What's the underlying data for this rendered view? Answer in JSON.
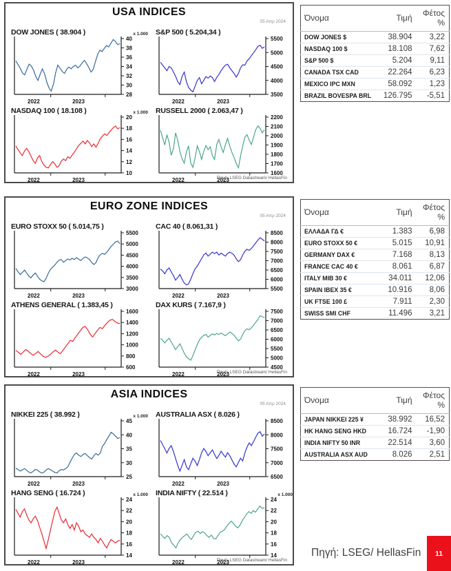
{
  "footer": {
    "source": "Πηγή: LSEG/ HellasFin",
    "page_number": "11"
  },
  "table_headers": [
    "Όνομα",
    "Τιμή",
    "Φέτος %"
  ],
  "panels": [
    {
      "title": "USA INDICES",
      "date": "05 Απρ 2024",
      "source": "Πηγή: LSEG Datastream/ HellasFin",
      "chart_ids": [
        0,
        1,
        2,
        3
      ],
      "table": {
        "rows": [
          [
            "DOW JONES $",
            "38.904",
            "3,22"
          ],
          [
            "NASDAQ 100 $",
            "18.108",
            "7,62"
          ],
          [
            "S&P 500 $",
            "5.204",
            "9,11"
          ],
          [
            "CANADA TSX CAD",
            "22.264",
            "6,23"
          ],
          [
            "MEXICO IPC MXN",
            "58.092",
            "1,23"
          ],
          [
            "BRAZIL BOVESPA BRL",
            "126.795",
            "-5,51"
          ]
        ]
      }
    },
    {
      "title": "EURO ZONE INDICES",
      "date": "05 Απρ 2024",
      "source": "Πηγή: LSEG Datastream/ HellasFin",
      "chart_ids": [
        4,
        5,
        6,
        7
      ],
      "table": {
        "rows": [
          [
            "ΕΛΛΑΔΑ ΓΔ €",
            "1.383",
            "6,98"
          ],
          [
            "EURO STOXX 50 €",
            "5.015",
            "10,91"
          ],
          [
            "GERMANY DAX €",
            "7.168",
            "8,13"
          ],
          [
            "FRANCE CAC 40 €",
            "8.061",
            "6,87"
          ],
          [
            "ITALY MIB 30 €",
            "34.011",
            "12,06"
          ],
          [
            "SPAIN IBEX 35 €",
            "10.916",
            "8,06"
          ],
          [
            "UK FTSE 100 £",
            "7.911",
            "2,30"
          ],
          [
            "SWISS SMI CHF",
            "11.496",
            "3,21"
          ]
        ]
      }
    },
    {
      "title": "ASIA INDICES",
      "date": "05 Απρ 2024",
      "source": "Πηγή: LSEG Datastream/ HellasFin",
      "chart_ids": [
        8,
        9,
        10,
        11
      ],
      "table": {
        "rows": [
          [
            "JAPAN NIKKEI 225 ¥",
            "38.992",
            "16,52"
          ],
          [
            "HK HANG SENG HKD",
            "16.724",
            "-1,90"
          ],
          [
            "INDIA NIFTY 50 INR",
            "22.514",
            "3,60"
          ],
          [
            "AUSTRALIA ASX AUD",
            "8.026",
            "2,51"
          ]
        ]
      }
    }
  ],
  "chart_data": [
    {
      "type": "line",
      "name": "DOW JONES",
      "last_value": "38.904",
      "title_display": "DOW JONES ( 38.904 )",
      "scale_label": "x 1.000",
      "color": "#366A9A",
      "ylim": [
        28,
        40
      ],
      "y_ticks": [
        "28",
        "30",
        "32",
        "34",
        "36",
        "38",
        "40"
      ],
      "x_tick_labels": [
        "2022",
        "2023"
      ],
      "points": [
        35.2,
        34.4,
        33.6,
        32.6,
        32.2,
        33.4,
        34.5,
        34.1,
        33.2,
        31.9,
        31.0,
        32.3,
        33.5,
        32.4,
        30.6,
        29.4,
        28.7,
        30.2,
        32.6,
        34.3,
        33.6,
        32.9,
        32.5,
        33.4,
        33.9,
        33.5,
        34.0,
        34.3,
        33.7,
        34.1,
        34.8,
        35.3,
        34.6,
        33.8,
        32.8,
        33.4,
        35.1,
        36.6,
        37.5,
        37.2,
        37.9,
        38.5,
        38.2,
        39.0,
        39.8,
        39.4,
        38.7,
        38.9
      ]
    },
    {
      "type": "line",
      "name": "S&P 500",
      "last_value": "5.204,34",
      "title_display": "S&P 500  ( 5.204,34 )",
      "scale_label": "",
      "color": "#3333CC",
      "ylim": [
        3500,
        5500
      ],
      "y_ticks": [
        "3500",
        "4000",
        "4500",
        "5000",
        "5500"
      ],
      "x_tick_labels": [
        "2022",
        "2023"
      ],
      "points": [
        4650,
        4550,
        4450,
        4350,
        4500,
        4450,
        4300,
        4150,
        3950,
        3850,
        4150,
        4300,
        3950,
        3750,
        3650,
        3590,
        3790,
        4000,
        4100,
        3880,
        4000,
        4140,
        4080,
        4160,
        4100,
        3960,
        4110,
        4210,
        4350,
        4460,
        4550,
        4580,
        4450,
        4350,
        4250,
        4120,
        4250,
        4450,
        4560,
        4550,
        4700,
        4780,
        4890,
        4990,
        5100,
        5220,
        5260,
        5150,
        5204
      ]
    },
    {
      "type": "line",
      "name": "NASDAQ 100",
      "last_value": "18.108",
      "title_display": "NASDAQ 100 ( 18.108 )",
      "scale_label": "x 1.000",
      "color": "#E8282F",
      "ylim": [
        10,
        20
      ],
      "y_ticks": [
        "10",
        "12",
        "14",
        "16",
        "18",
        "20"
      ],
      "x_tick_labels": [
        "2022",
        "2023"
      ],
      "points": [
        14.8,
        14.2,
        13.6,
        13.1,
        13.9,
        14.4,
        13.8,
        13.0,
        12.2,
        11.7,
        12.7,
        13.1,
        12.0,
        11.4,
        11.0,
        10.9,
        11.5,
        12.0,
        11.6,
        11.0,
        11.3,
        12.1,
        12.5,
        12.2,
        12.9,
        12.6,
        13.2,
        13.7,
        14.3,
        14.9,
        15.3,
        15.7,
        15.2,
        15.8,
        15.4,
        14.7,
        15.2,
        14.6,
        15.3,
        16.1,
        16.6,
        17.0,
        16.7,
        17.2,
        17.7,
        18.1,
        18.4,
        17.9,
        18.1
      ]
    },
    {
      "type": "line",
      "name": "RUSSELL 2000",
      "last_value": "2.063,47",
      "title_display": "RUSSELL 2000  ( 2.063,47 )",
      "scale_label": "",
      "color": "#4BA585",
      "ylim": [
        1600,
        2200
      ],
      "y_ticks": [
        "1600",
        "1700",
        "1800",
        "1900",
        "2000",
        "2100",
        "2200"
      ],
      "x_tick_labels": [
        "2022",
        "2023"
      ],
      "points": [
        2060,
        1980,
        1900,
        2010,
        1930,
        1790,
        1860,
        2030,
        1950,
        1830,
        1750,
        1705,
        1830,
        1890,
        1705,
        1660,
        1760,
        1890,
        1830,
        1745,
        1830,
        1895,
        1850,
        1880,
        1785,
        1745,
        1905,
        1960,
        1880,
        1820,
        1905,
        1970,
        1890,
        1820,
        1765,
        1700,
        1655,
        1785,
        1890,
        1985,
        2010,
        1950,
        1905,
        1985,
        2065,
        2105,
        2080,
        2030,
        2063
      ]
    },
    {
      "type": "line",
      "name": "EURO STOXX 50",
      "last_value": "5.014,75",
      "title_display": "EURO STOXX 50 ( 5.014,75 )",
      "scale_label": "",
      "color": "#366A9A",
      "ylim": [
        3000,
        5500
      ],
      "y_ticks": [
        "3000",
        "3500",
        "4000",
        "4500",
        "5000",
        "5500"
      ],
      "x_tick_labels": [
        "2022",
        "2023"
      ],
      "points": [
        3900,
        3760,
        3630,
        3720,
        3830,
        3700,
        3560,
        3480,
        3610,
        3700,
        3550,
        3420,
        3350,
        3310,
        3460,
        3690,
        3860,
        3960,
        4060,
        4180,
        4280,
        4300,
        4180,
        4260,
        4330,
        4280,
        4360,
        4300,
        4390,
        4320,
        4260,
        4350,
        4420,
        4380,
        4300,
        4180,
        4080,
        4160,
        4390,
        4520,
        4580,
        4530,
        4630,
        4760,
        4890,
        4990,
        5090,
        5130,
        5015
      ]
    },
    {
      "type": "line",
      "name": "CAC 40",
      "last_value": "8.061,31",
      "title_display": "CAC 40  ( 8.061,31 )",
      "scale_label": "",
      "color": "#3333CC",
      "ylim": [
        5500,
        8500
      ],
      "y_ticks": [
        "5500",
        "6000",
        "6500",
        "7000",
        "7500",
        "8000",
        "8500"
      ],
      "x_tick_labels": [
        "2022",
        "2023"
      ],
      "points": [
        6560,
        6450,
        6300,
        6500,
        6610,
        6400,
        6200,
        5950,
        6100,
        6260,
        6000,
        5800,
        5700,
        5760,
        6010,
        6300,
        6560,
        6710,
        6910,
        7110,
        7310,
        7410,
        7250,
        7360,
        7460,
        7380,
        7460,
        7300,
        7410,
        7320,
        7250,
        7390,
        7460,
        7400,
        7300,
        7100,
        6950,
        7060,
        7310,
        7510,
        7610,
        7560,
        7660,
        7810,
        7960,
        8110,
        8230,
        8150,
        8061
      ]
    },
    {
      "type": "line",
      "name": "ATHENS GENERAL",
      "last_value": "1.383,45",
      "title_display": "ATHENS GENERAL ( 1.383,45 )",
      "scale_label": "",
      "color": "#E8282F",
      "ylim": [
        600,
        1600
      ],
      "y_ticks": [
        "600",
        "800",
        "1000",
        "1200",
        "1400",
        "1600"
      ],
      "x_tick_labels": [
        "2022",
        "2023"
      ],
      "points": [
        900,
        865,
        830,
        870,
        915,
        885,
        845,
        815,
        845,
        880,
        835,
        795,
        775,
        795,
        830,
        870,
        905,
        870,
        840,
        900,
        960,
        1020,
        1080,
        1060,
        1130,
        1190,
        1250,
        1310,
        1330,
        1270,
        1190,
        1140,
        1200,
        1260,
        1310,
        1290,
        1350,
        1400,
        1440,
        1455,
        1420,
        1390,
        1383
      ]
    },
    {
      "type": "line",
      "name": "DAX KURS",
      "last_value": "7.167,9",
      "title_display": "DAX KURS  ( 7.167,9 )",
      "scale_label": "",
      "color": "#4BA585",
      "ylim": [
        4500,
        7500
      ],
      "y_ticks": [
        "4500",
        "5000",
        "5500",
        "6000",
        "6500",
        "7000",
        "7500"
      ],
      "x_tick_labels": [
        "2022",
        "2023"
      ],
      "points": [
        6050,
        5950,
        5800,
        5950,
        6050,
        5850,
        5650,
        5450,
        5600,
        5750,
        5500,
        5250,
        5050,
        4950,
        4870,
        5120,
        5420,
        5720,
        5960,
        6110,
        6210,
        6260,
        6110,
        6210,
        6290,
        6230,
        6310,
        6260,
        6330,
        6260,
        6190,
        6290,
        6390,
        6310,
        6210,
        6060,
        5910,
        6010,
        6260,
        6460,
        6560,
        6510,
        6610,
        6760,
        6910,
        7060,
        7260,
        7210,
        7168
      ]
    },
    {
      "type": "line",
      "name": "NIKKEI 225",
      "last_value": "38.992",
      "title_display": "NIKKEI 225 ( 38.992 )",
      "scale_label": "x 1.000",
      "color": "#366A9A",
      "ylim": [
        25,
        45
      ],
      "y_ticks": [
        "25",
        "30",
        "35",
        "40",
        "45"
      ],
      "x_tick_labels": [
        "2022",
        "2023"
      ],
      "points": [
        28.0,
        27.6,
        27.0,
        27.4,
        27.9,
        27.3,
        26.6,
        26.3,
        26.9,
        27.6,
        27.3,
        26.7,
        26.3,
        26.6,
        27.4,
        27.9,
        27.5,
        27.0,
        26.5,
        26.3,
        27.1,
        27.6,
        27.4,
        27.9,
        28.5,
        30.1,
        31.6,
        32.9,
        33.5,
        32.7,
        32.2,
        32.9,
        33.3,
        32.5,
        31.9,
        31.3,
        32.5,
        33.3,
        32.7,
        33.5,
        35.9,
        36.9,
        38.3,
        39.6,
        40.9,
        40.3,
        39.5,
        38.7,
        39.0
      ]
    },
    {
      "type": "line",
      "name": "AUSTRALIA ASX",
      "last_value": "8.026",
      "title_display": "AUSTRALIA ASX  ( 8.026 )",
      "scale_label": "",
      "color": "#3333CC",
      "ylim": [
        6500,
        8500
      ],
      "y_ticks": [
        "6500",
        "7000",
        "7500",
        "8000",
        "8500"
      ],
      "x_tick_labels": [
        "2022",
        "2023"
      ],
      "points": [
        7800,
        7650,
        7500,
        7350,
        7510,
        7610,
        7400,
        7150,
        6900,
        6700,
        6910,
        7110,
        6850,
        6750,
        6960,
        7160,
        7060,
        6900,
        7110,
        7360,
        7510,
        7400,
        7250,
        7360,
        7460,
        7300,
        7150,
        7260,
        7410,
        7300,
        7200,
        7360,
        7250,
        7100,
        6950,
        6850,
        7010,
        7160,
        7060,
        7360,
        7560,
        7710,
        7610,
        7760,
        7910,
        8060,
        8110,
        7950,
        8026
      ]
    },
    {
      "type": "line",
      "name": "HANG SENG",
      "last_value": "16.724",
      "title_display": "HANG SENG ( 16.724 )",
      "scale_label": "x 1.000",
      "color": "#E8282F",
      "ylim": [
        14,
        24
      ],
      "y_ticks": [
        "14",
        "16",
        "18",
        "20",
        "22",
        "24"
      ],
      "x_tick_labels": [
        "2022",
        "2023"
      ],
      "points": [
        22.2,
        21.5,
        20.8,
        21.8,
        22.3,
        21.2,
        20.3,
        19.8,
        20.5,
        21.0,
        20.2,
        19.0,
        17.8,
        16.5,
        15.2,
        16.8,
        18.5,
        20.2,
        21.8,
        22.6,
        21.5,
        20.3,
        19.8,
        20.5,
        19.5,
        18.8,
        19.5,
        18.5,
        19.8,
        19.2,
        18.2,
        18.5,
        17.8,
        17.5,
        17.2,
        17.8,
        17.2,
        16.8,
        16.2,
        17.0,
        16.5,
        15.8,
        15.3,
        16.2,
        16.8,
        16.5,
        16.2,
        16.5,
        16.7
      ]
    },
    {
      "type": "line",
      "name": "INDIA NIFTY",
      "last_value": "22.514",
      "title_display": "INDIA NIFTY  ( 22.514 )",
      "scale_label": "x 1.000",
      "color": "#4BA585",
      "ylim": [
        14,
        24
      ],
      "y_ticks": [
        "14",
        "16",
        "18",
        "20",
        "22",
        "24"
      ],
      "x_tick_labels": [
        "2022",
        "2023"
      ],
      "points": [
        17.8,
        17.4,
        17.0,
        17.5,
        17.2,
        16.2,
        15.8,
        15.3,
        16.2,
        16.8,
        17.2,
        17.5,
        17.8,
        17.2,
        16.8,
        17.5,
        18.1,
        18.3,
        17.9,
        18.2,
        18.0,
        17.5,
        17.2,
        17.6,
        17.0,
        16.9,
        17.5,
        18.1,
        18.3,
        18.6,
        19.2,
        19.7,
        20.1,
        19.7,
        19.2,
        18.9,
        19.4,
        20.2,
        20.8,
        21.4,
        21.8,
        21.5,
        22.0,
        21.7,
        22.3,
        22.8,
        22.4,
        22.5
      ]
    }
  ]
}
